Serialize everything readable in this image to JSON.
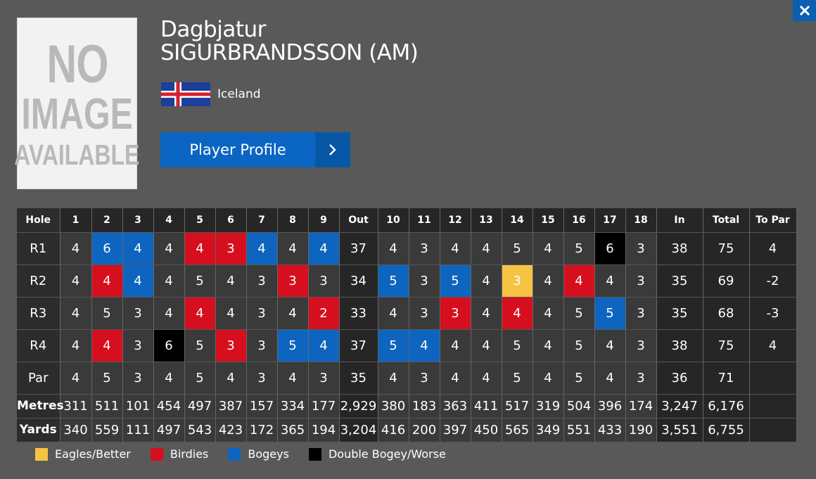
{
  "player": {
    "first_name": "Dagbjatur",
    "last_name": "SIGURBRANDSSON (AM)",
    "country": "Iceland",
    "photo_placeholder": [
      "NO",
      "IMAGE",
      "AVAILABLE"
    ],
    "profile_button_label": "Player Profile"
  },
  "colors": {
    "eagle": "#f7c343",
    "birdie": "#d60f1e",
    "bogey": "#0d65bf",
    "double": "#000000",
    "accent": "#0a66c2"
  },
  "scorecard": {
    "headers": [
      "Hole",
      "1",
      "2",
      "3",
      "4",
      "5",
      "6",
      "7",
      "8",
      "9",
      "Out",
      "10",
      "11",
      "12",
      "13",
      "14",
      "15",
      "16",
      "17",
      "18",
      "In",
      "Total",
      "To Par"
    ],
    "rounds": [
      {
        "label": "R1",
        "holes": [
          4,
          6,
          4,
          4,
          4,
          3,
          4,
          4,
          4,
          4,
          3,
          4,
          4,
          5,
          4,
          5,
          6,
          3
        ],
        "out": "37",
        "in": "38",
        "total": "75",
        "to_par": "4"
      },
      {
        "label": "R2",
        "holes": [
          4,
          4,
          4,
          4,
          5,
          4,
          3,
          3,
          3,
          5,
          3,
          5,
          4,
          3,
          4,
          4,
          4,
          3
        ],
        "out": "34",
        "in": "35",
        "total": "69",
        "to_par": "-2"
      },
      {
        "label": "R3",
        "holes": [
          4,
          5,
          3,
          4,
          4,
          4,
          3,
          4,
          2,
          4,
          3,
          3,
          4,
          4,
          4,
          5,
          5,
          3
        ],
        "out": "33",
        "in": "35",
        "total": "68",
        "to_par": "-3"
      },
      {
        "label": "R4",
        "holes": [
          4,
          4,
          3,
          6,
          5,
          3,
          3,
          5,
          4,
          5,
          4,
          4,
          4,
          5,
          4,
          5,
          4,
          3
        ],
        "out": "37",
        "in": "38",
        "total": "75",
        "to_par": "4"
      }
    ],
    "par": {
      "label": "Par",
      "holes": [
        4,
        5,
        3,
        4,
        5,
        4,
        3,
        4,
        3,
        4,
        3,
        4,
        4,
        5,
        4,
        5,
        4,
        3
      ],
      "out": "35",
      "in": "36",
      "total": "71"
    },
    "metres": {
      "label": "Metres",
      "holes": [
        "311",
        "511",
        "101",
        "454",
        "497",
        "387",
        "157",
        "334",
        "177",
        "380",
        "183",
        "363",
        "411",
        "517",
        "319",
        "504",
        "396",
        "174"
      ],
      "out": "2,929",
      "in": "3,247",
      "total": "6,176"
    },
    "yards": {
      "label": "Yards",
      "holes": [
        "340",
        "559",
        "111",
        "497",
        "543",
        "423",
        "172",
        "365",
        "194",
        "416",
        "200",
        "397",
        "450",
        "565",
        "349",
        "551",
        "433",
        "190"
      ],
      "out": "3,204",
      "in": "3,551",
      "total": "6,755"
    }
  },
  "legend": [
    {
      "label": "Eagles/Better",
      "key": "eagle"
    },
    {
      "label": "Birdies",
      "key": "birdie"
    },
    {
      "label": "Bogeys",
      "key": "bogey"
    },
    {
      "label": "Double Bogey/Worse",
      "key": "double"
    }
  ]
}
